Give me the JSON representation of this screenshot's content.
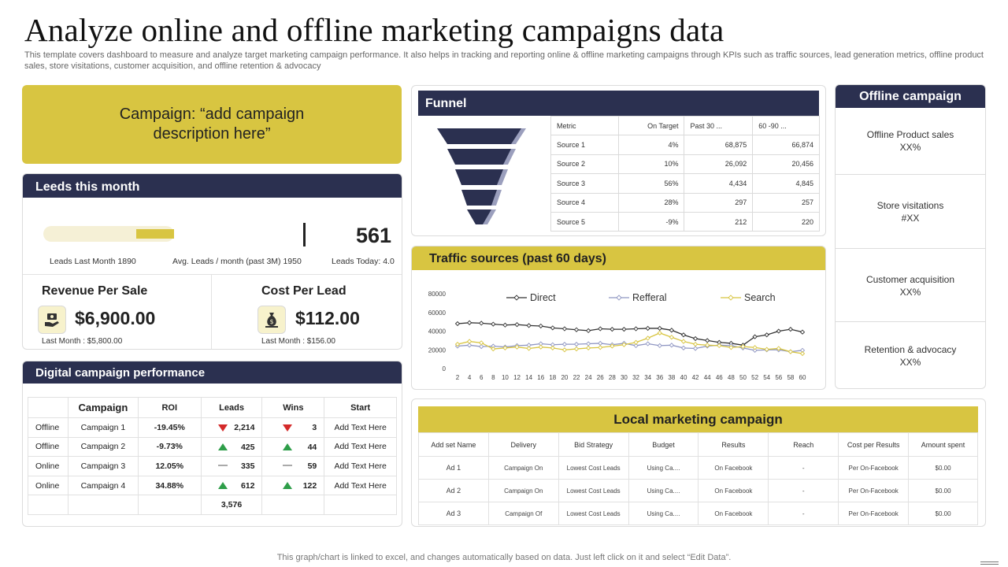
{
  "header": {
    "title": "Analyze online and offline marketing campaigns data",
    "subtitle": "This template covers dashboard to measure and analyze target marketing campaign performance. It also helps in tracking and reporting online & offline marketing campaigns through KPIs such as traffic sources, lead generation metrics, offline product sales, store visitations, customer acquisition, and offline retention & advocacy"
  },
  "campaign": {
    "text": "Campaign: “add campaign description here”"
  },
  "leads": {
    "title": "Leeds this month",
    "value": "561",
    "last_month": "Leads Last Month 1890",
    "avg": "Avg. Leads / month  (past 3M) 1950",
    "today": "Leads Today: 4.0",
    "progress_fraction": 0.29
  },
  "revenue": {
    "title": "Revenue Per Sale",
    "value": "$6,900.00",
    "last": "Last Month  : $5,800.00",
    "icon": "money-hand-icon"
  },
  "cost": {
    "title": "Cost Per Lead",
    "value": "$112.00",
    "last": "Last Month  : $156.00",
    "icon": "money-bag-icon"
  },
  "digital": {
    "title": "Digital campaign performance",
    "headers": [
      "",
      "Campaign",
      "ROI",
      "Leads",
      "Wins",
      "Start"
    ],
    "rows": [
      {
        "type": "Offline",
        "campaign": "Campaign  1",
        "roi": "-19.45%",
        "lead_trend": "down",
        "leads": "2,214",
        "win_trend": "down",
        "wins": "3",
        "start": "Add Text Here"
      },
      {
        "type": "Offline",
        "campaign": "Campaign  2",
        "roi": "-9.73%",
        "lead_trend": "up",
        "leads": "425",
        "win_trend": "up",
        "wins": "44",
        "start": "Add Text Here"
      },
      {
        "type": "Online",
        "campaign": "Campaign  3",
        "roi": "12.05%",
        "lead_trend": "flat",
        "leads": "335",
        "win_trend": "flat",
        "wins": "59",
        "start": "Add Text Here"
      },
      {
        "type": "Online",
        "campaign": "Campaign  4",
        "roi": "34.88%",
        "lead_trend": "up",
        "leads": "612",
        "win_trend": "up",
        "wins": "122",
        "start": "Add Text Here"
      }
    ],
    "total_leads": "3,576"
  },
  "funnel": {
    "title": "Funnel",
    "headers": [
      "Metric",
      "On Target",
      "Past 30 ...",
      "60 -90 ..."
    ],
    "rows": [
      [
        "Source 1",
        "4%",
        "68,875",
        "66,874"
      ],
      [
        "Source 2",
        "10%",
        "26,092",
        "20,456"
      ],
      [
        "Source 3",
        "56%",
        "4,434",
        "4,845"
      ],
      [
        "Source 4",
        "28%",
        "297",
        "257"
      ],
      [
        "Source 5",
        "-9%",
        "212",
        "220"
      ]
    ]
  },
  "traffic": {
    "title": "Traffic sources (past 60 days)"
  },
  "chart_data": {
    "type": "line",
    "title": "Traffic sources (past 60 days)",
    "x": [
      2,
      4,
      6,
      8,
      10,
      12,
      14,
      16,
      18,
      20,
      22,
      24,
      26,
      28,
      30,
      32,
      34,
      36,
      38,
      40,
      42,
      44,
      46,
      48,
      50,
      52,
      54,
      56,
      58,
      60
    ],
    "ylim": [
      0,
      80000
    ],
    "yticks": [
      "0",
      "20000",
      "40000",
      "60000",
      "80000"
    ],
    "legend_position": "top",
    "series": [
      {
        "name": "Direct",
        "color": "#333333",
        "values": [
          48000,
          49000,
          48500,
          47500,
          46500,
          47000,
          46000,
          45500,
          43500,
          42500,
          41500,
          40500,
          42500,
          42000,
          42000,
          42500,
          43000,
          43000,
          41000,
          36000,
          32000,
          30000,
          28000,
          27000,
          25000,
          34000,
          36000,
          40000,
          42000,
          39000
        ]
      },
      {
        "name": "Refferal",
        "color": "#8f96c2",
        "values": [
          24000,
          25000,
          23500,
          24000,
          23000,
          24500,
          25000,
          26500,
          25500,
          26000,
          26000,
          26500,
          27000,
          25500,
          27000,
          24500,
          26500,
          24500,
          25000,
          22000,
          21500,
          24000,
          25000,
          24500,
          22000,
          19500,
          20000,
          20000,
          18000,
          19500
        ]
      },
      {
        "name": "Search",
        "color": "#d8c541",
        "values": [
          26000,
          29000,
          27500,
          21000,
          22000,
          23000,
          21500,
          23000,
          22000,
          20000,
          21000,
          22000,
          22500,
          24000,
          25500,
          28000,
          32500,
          38000,
          33500,
          29000,
          26000,
          25000,
          24500,
          22500,
          23500,
          22500,
          20500,
          21500,
          18000,
          16000
        ]
      }
    ]
  },
  "offline": {
    "title": "Offline campaign",
    "items": [
      {
        "label": "Offline  Product sales",
        "value": "XX%"
      },
      {
        "label": "Store visitations",
        "value": "#XX"
      },
      {
        "label": "Customer acquisition",
        "value": "XX%"
      },
      {
        "label": "Retention & advocacy",
        "value": "XX%"
      }
    ]
  },
  "local": {
    "title": "Local marketing campaign",
    "headers": [
      "Add set Name",
      "Delivery",
      "Bid Strategy",
      "Budget",
      "Results",
      "Reach",
      "Cost per Results",
      "Amount spent"
    ],
    "rows": [
      [
        "Ad 1",
        "Campaign  On",
        "Lowest  Cost Leads",
        "Using Ca....",
        "On Facebook",
        "-",
        "Per On-Facebook",
        "$0.00"
      ],
      [
        "Ad 2",
        "Campaign  On",
        "Lowest  Cost Leads",
        "Using Ca....",
        "On Facebook",
        "-",
        "Per On-Facebook",
        "$0.00"
      ],
      [
        "Ad 3",
        "Campaign  Of",
        "Lowest  Cost Leads",
        "Using Ca....",
        "On Facebook",
        "-",
        "Per On-Facebook",
        "$0.00"
      ]
    ]
  },
  "footer": {
    "text": "This graph/chart is linked to excel,  and changes automatically based on data. Just left click on it and select “Edit Data”."
  },
  "colors": {
    "navy": "#2b3050",
    "gold": "#d8c541",
    "up": "#2e9e49",
    "down": "#d42a2a"
  }
}
